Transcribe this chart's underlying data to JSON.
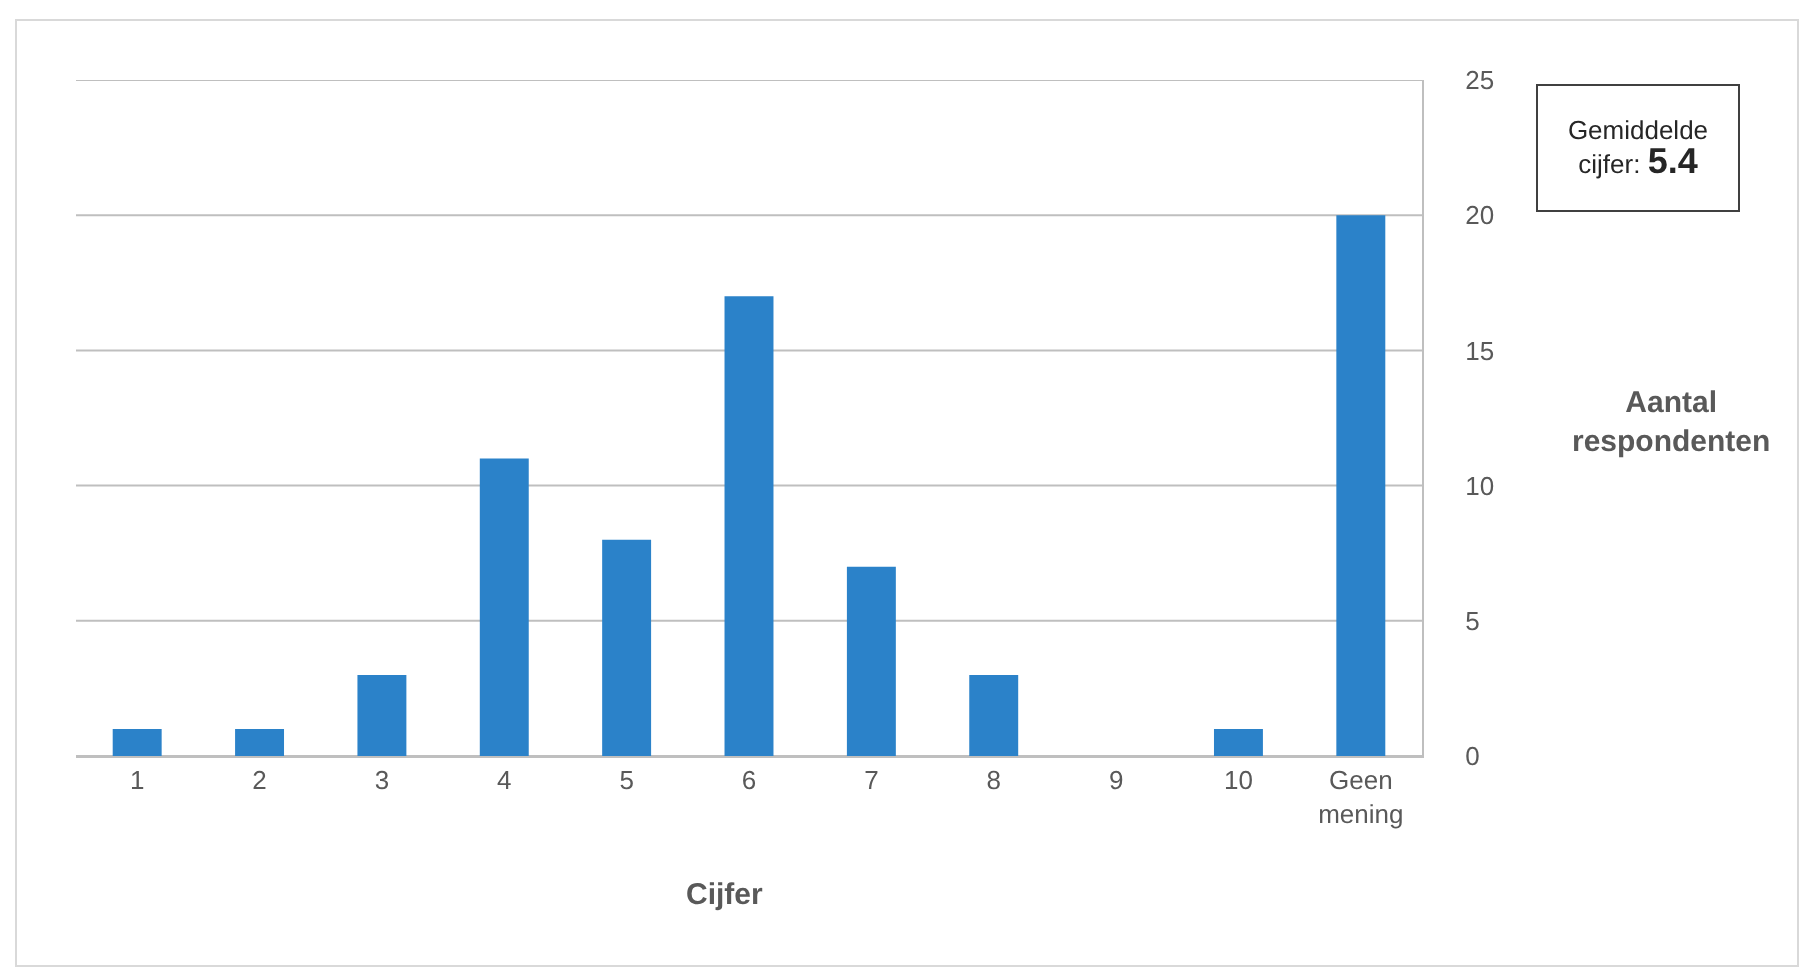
{
  "chart_data": {
    "type": "bar",
    "xlabel": "Cijfer",
    "ylabel": "Aantal respondenten",
    "categories": [
      "1",
      "2",
      "3",
      "4",
      "5",
      "6",
      "7",
      "8",
      "9",
      "10",
      "Geen mening"
    ],
    "values": [
      1,
      1,
      3,
      11,
      8,
      17,
      7,
      3,
      0,
      1,
      20
    ],
    "color": "#2b82c9",
    "ylim": [
      0,
      25
    ],
    "yticks": [
      0,
      5,
      10,
      15,
      20,
      25
    ],
    "grid": "y",
    "annotations": [
      "Gemiddelde cijfer: 5.4"
    ]
  }
}
